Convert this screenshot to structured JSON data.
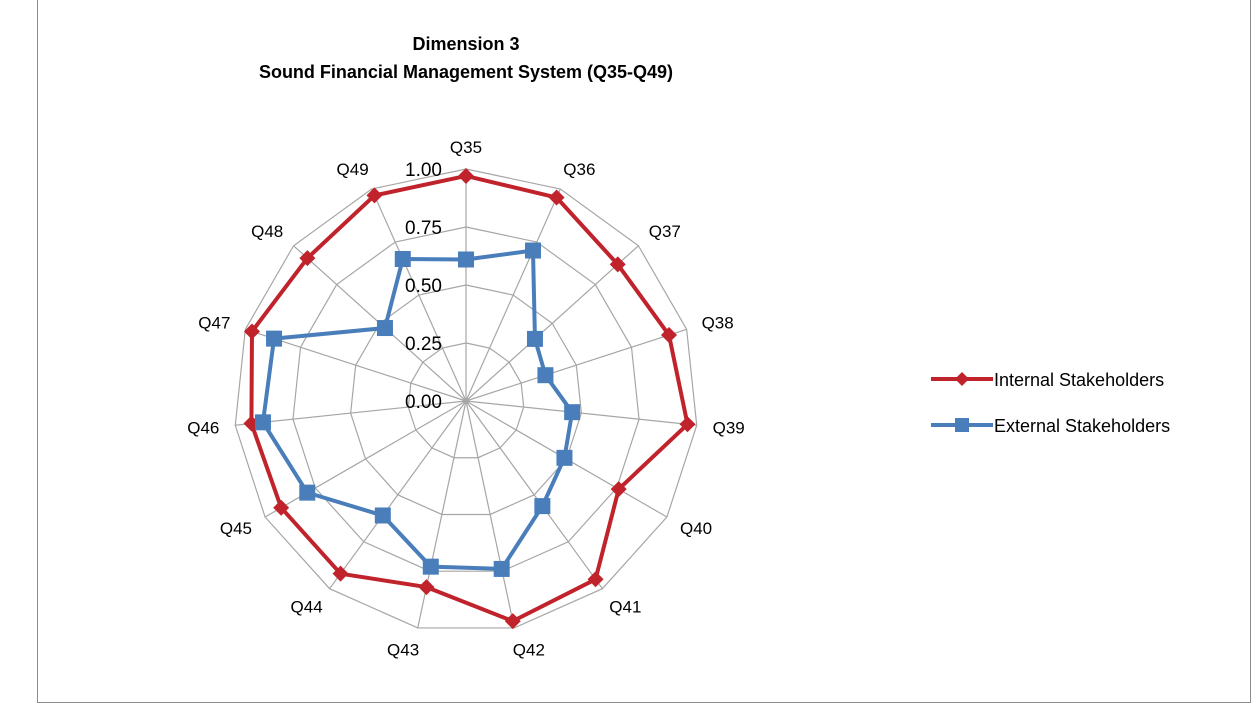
{
  "chart_data": {
    "type": "radar",
    "title": "Dimension 3",
    "subtitle": "Sound Financial Management System (Q35-Q49)",
    "categories": [
      "Q35",
      "Q36",
      "Q37",
      "Q38",
      "Q39",
      "Q40",
      "Q41",
      "Q42",
      "Q43",
      "Q44",
      "Q45",
      "Q46",
      "Q47",
      "Q48",
      "Q49"
    ],
    "ticks": [
      "0.00",
      "0.25",
      "0.50",
      "0.75",
      "1.00"
    ],
    "rlim": [
      0,
      1
    ],
    "grid": true,
    "legend_position": "right",
    "series": [
      {
        "name": "Internal Stakeholders",
        "color": "#c0232b",
        "marker": "diamond",
        "values": [
          0.97,
          0.96,
          0.88,
          0.92,
          0.96,
          0.76,
          0.95,
          0.97,
          0.82,
          0.92,
          0.92,
          0.93,
          0.97,
          0.92,
          0.97
        ]
      },
      {
        "name": "External Stakeholders",
        "color": "#4a7ebb",
        "marker": "square",
        "values": [
          0.61,
          0.71,
          0.4,
          0.36,
          0.46,
          0.49,
          0.56,
          0.74,
          0.73,
          0.61,
          0.79,
          0.88,
          0.87,
          0.47,
          0.67
        ]
      }
    ]
  }
}
